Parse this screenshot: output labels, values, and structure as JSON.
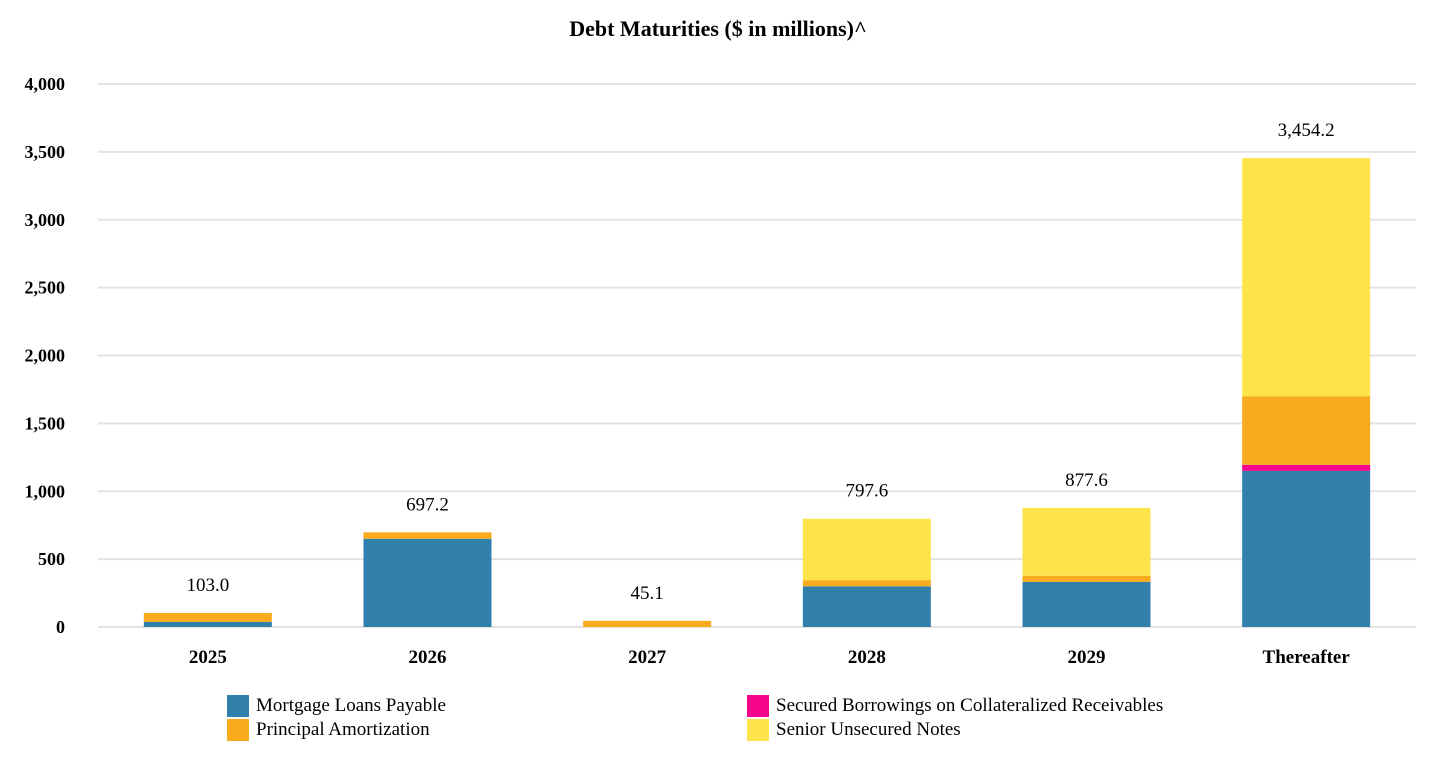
{
  "chart_data": {
    "type": "bar",
    "stacked": true,
    "title": "Debt Maturities ($ in millions)^",
    "xlabel": "",
    "ylabel": "",
    "ylim": [
      0,
      4000
    ],
    "yticks": [
      "0",
      "500",
      "1,000",
      "1,500",
      "2,000",
      "2,500",
      "3,000",
      "3,500",
      "4,000"
    ],
    "grid": true,
    "legend_position": "bottom",
    "categories": [
      "2025",
      "2026",
      "2027",
      "2028",
      "2029",
      "Thereafter"
    ],
    "totals": [
      "103.0",
      "697.2",
      "45.1",
      "797.6",
      "877.6",
      "3,454.2"
    ],
    "series": [
      {
        "name": "Mortgage Loans Payable",
        "color": "#317fab",
        "values": [
          38,
          650,
          0,
          300,
          332.6,
          1150
        ]
      },
      {
        "name": "Secured Borrowings on Collateralized Receivables",
        "color": "#f5068c",
        "values": [
          0,
          0,
          0,
          0,
          0,
          45
        ]
      },
      {
        "name": "Principal Amortization",
        "color": "#f8ab1c",
        "values": [
          65,
          47.2,
          45.1,
          45,
          45,
          505
        ]
      },
      {
        "name": "Senior Unsecured Notes",
        "color": "#fde44b",
        "values": [
          0,
          0,
          0,
          452.6,
          500,
          1754.2
        ]
      }
    ]
  }
}
